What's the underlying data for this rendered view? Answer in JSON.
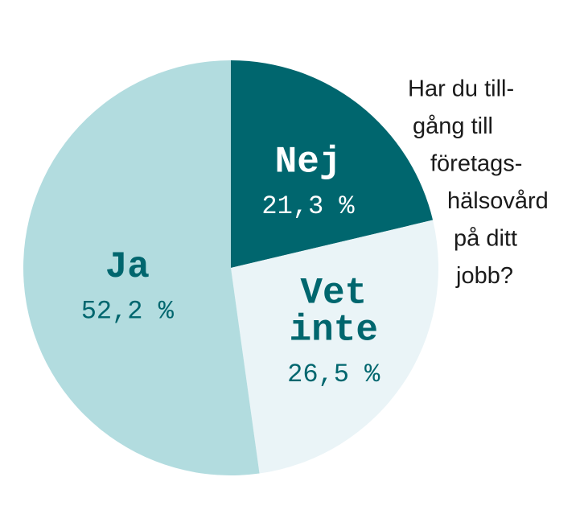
{
  "chart_data": {
    "type": "pie",
    "title": [
      "Har du till-",
      "gång till",
      "företags-",
      "hälsovård",
      "på ditt",
      "jobb?"
    ],
    "categories": [
      "Nej",
      "Vet inte",
      "Ja"
    ],
    "values": [
      21.3,
      26.5,
      52.2
    ],
    "value_labels": [
      "21,3 %",
      "26,5 %",
      "52,2 %"
    ],
    "colors": [
      "#00666e",
      "#eaf4f7",
      "#b2dcdf"
    ],
    "label_colors": [
      "#ffffff",
      "#00666e",
      "#00666e"
    ]
  }
}
